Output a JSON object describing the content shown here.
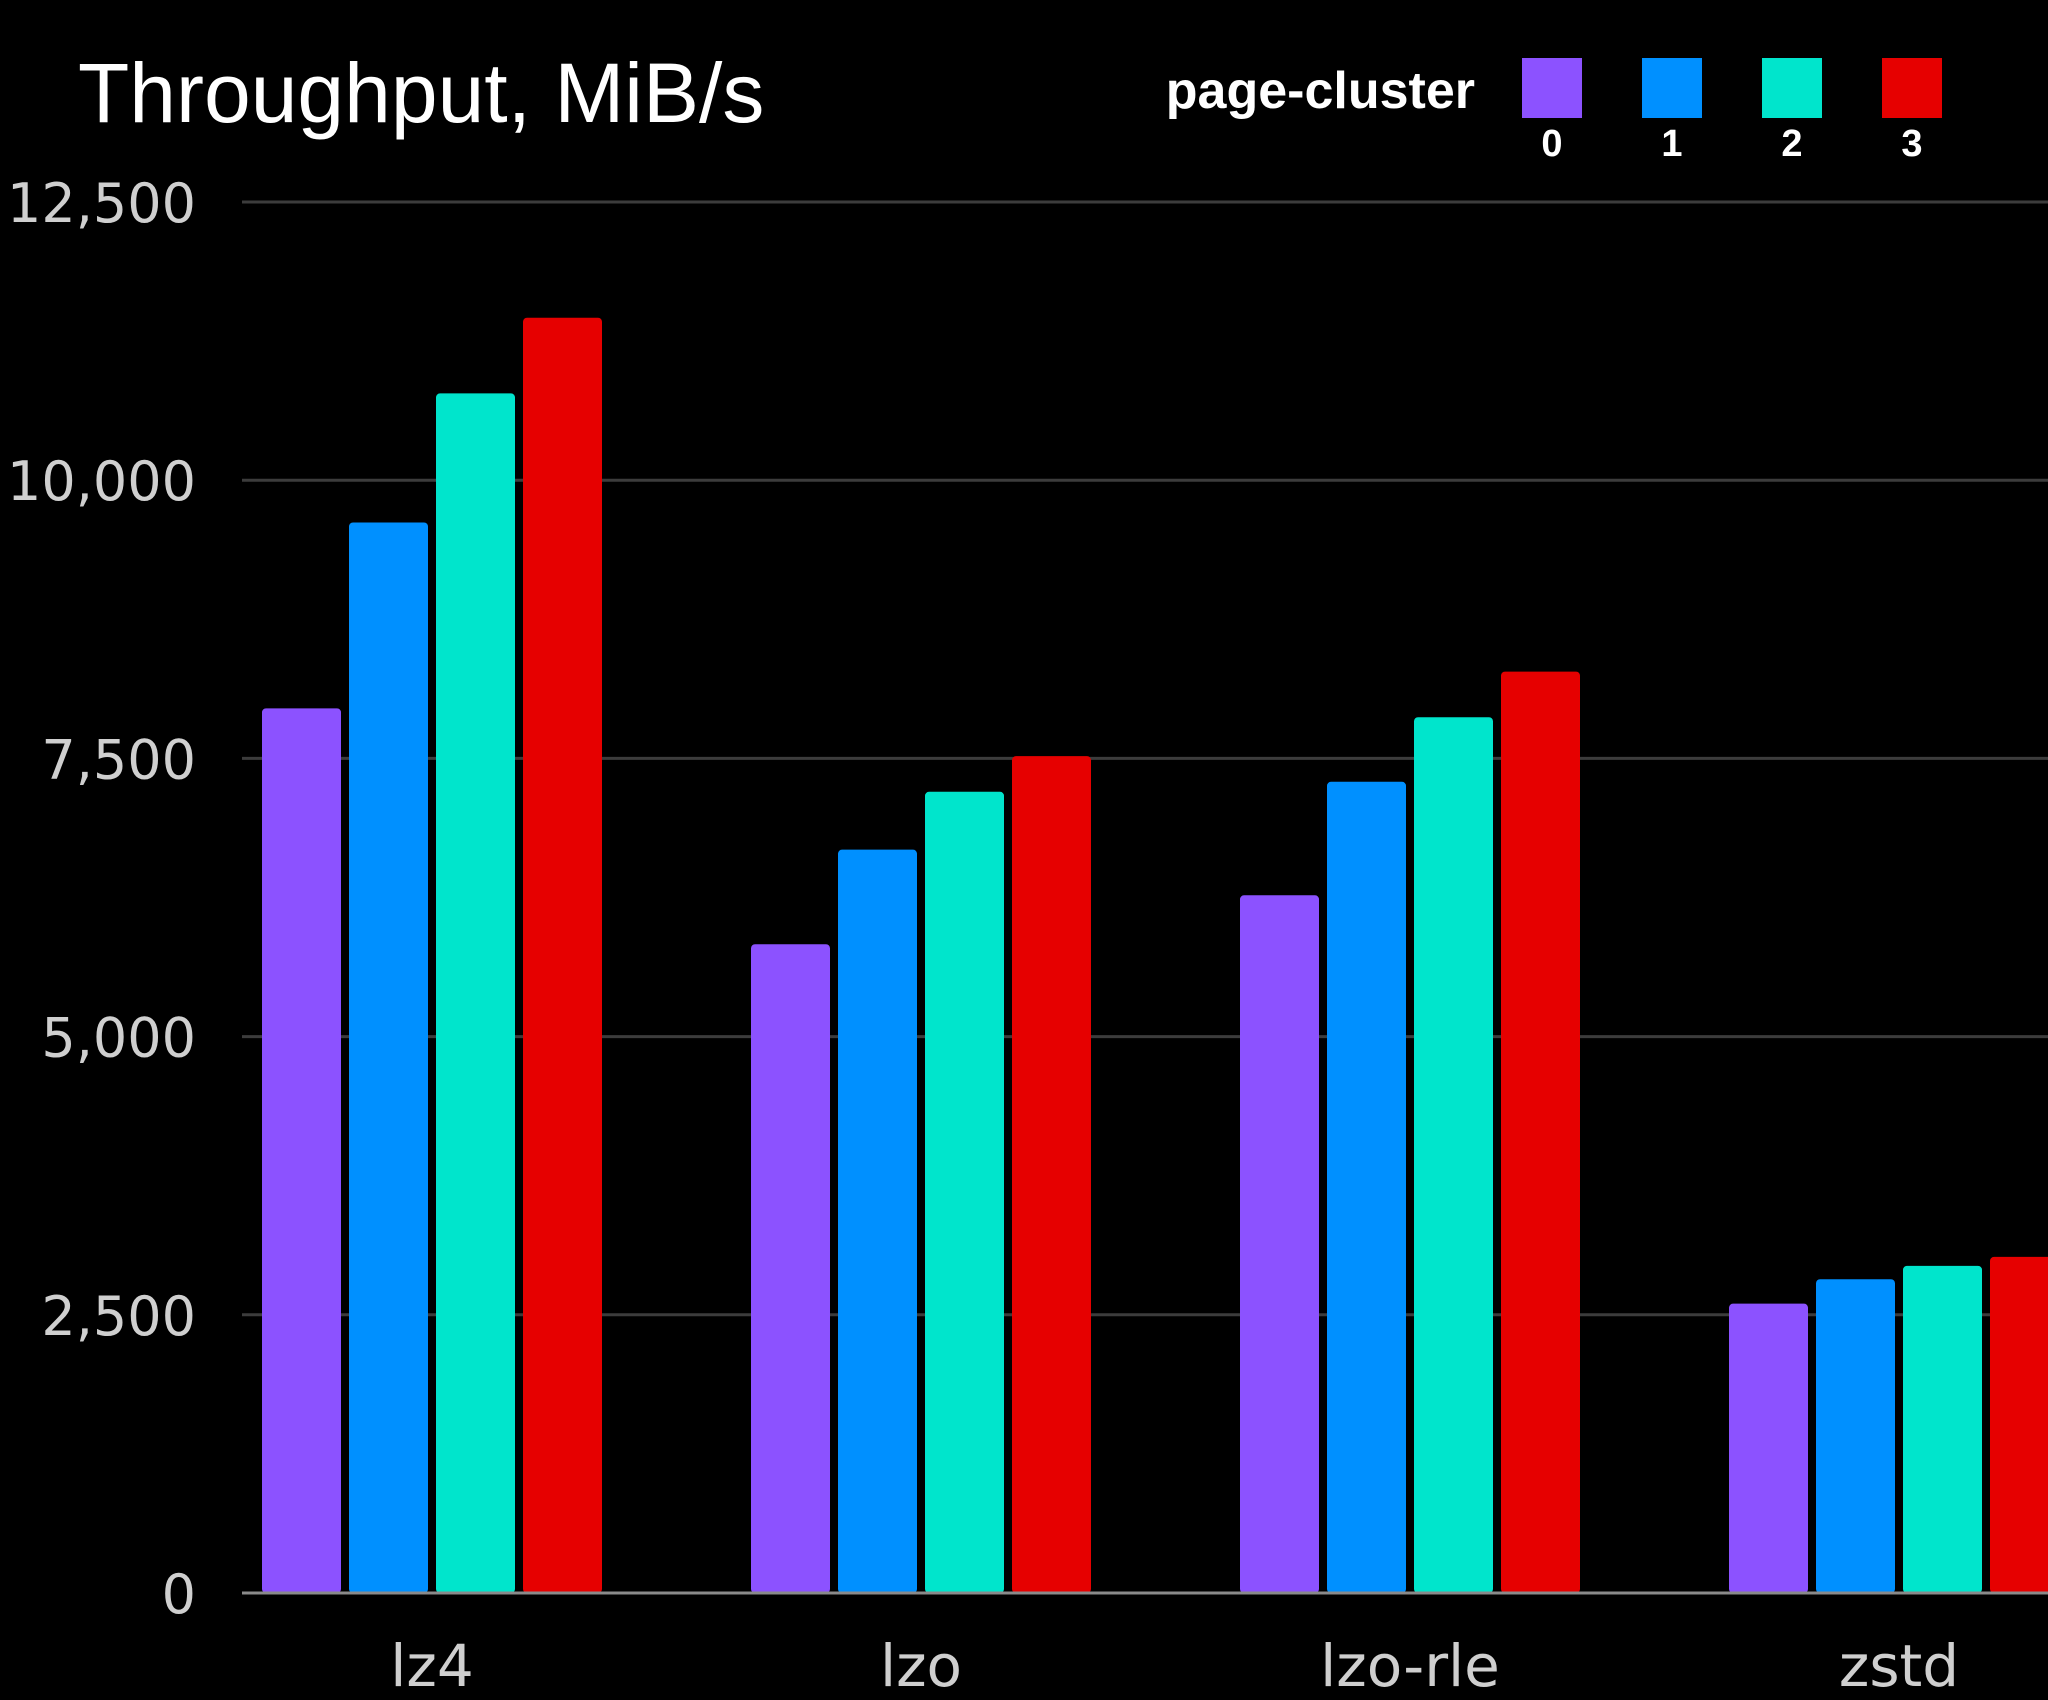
{
  "chart_data": {
    "type": "bar",
    "title": "Throughput, MiB/s",
    "xlabel": "",
    "ylabel": "",
    "ylim": [
      0,
      12500
    ],
    "yticks": [
      0,
      2500,
      5000,
      7500,
      10000,
      12500
    ],
    "ytick_labels": [
      "0",
      "2,500",
      "5,000",
      "7,500",
      "10,000",
      "12,500"
    ],
    "grid": true,
    "legend": {
      "title": "page-cluster",
      "position": "top-right"
    },
    "categories": [
      "lz4",
      "lzo",
      "lzo-rle",
      "zstd"
    ],
    "series": [
      {
        "name": "0",
        "color": "#8c52ff",
        "values": [
          7950,
          5830,
          6270,
          2600
        ]
      },
      {
        "name": "1",
        "color": "#0090ff",
        "values": [
          9620,
          6680,
          7290,
          2820
        ]
      },
      {
        "name": "2",
        "color": "#00e5cc",
        "values": [
          10780,
          7200,
          7870,
          2940
        ]
      },
      {
        "name": "3",
        "color": "#e60000",
        "values": [
          11460,
          7520,
          8280,
          3020
        ]
      }
    ]
  }
}
